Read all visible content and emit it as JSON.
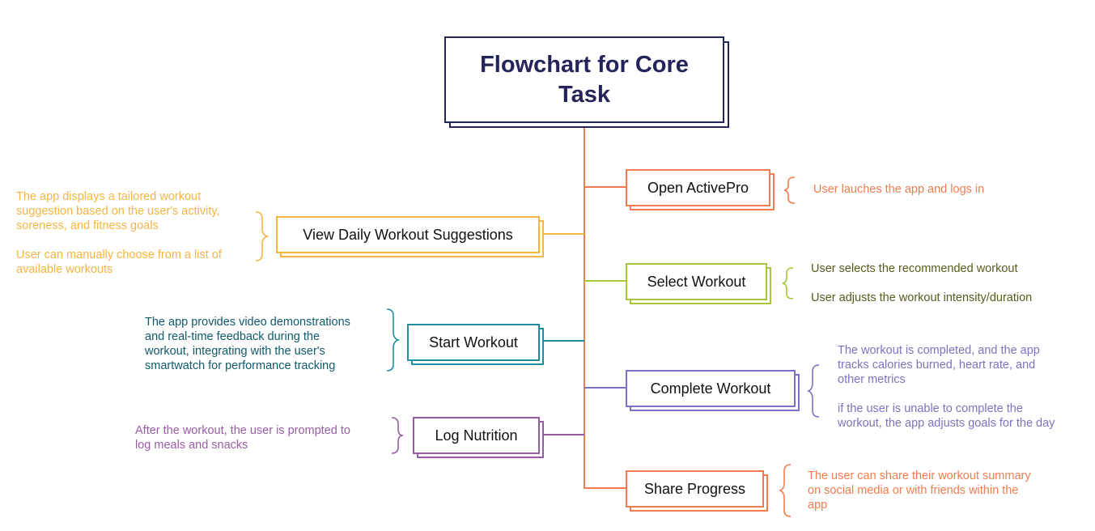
{
  "title": "Flowchart for Core Task",
  "colors": {
    "title": "#22245a",
    "trunk": "#f07c4f",
    "open": "#f07c4f",
    "view": "#f6b442",
    "select": "#a6c73a",
    "start": "#1e8fa3",
    "complete": "#7b73c2",
    "log": "#9a5ba6",
    "share": "#f07c4f"
  },
  "steps": {
    "open": "Open ActivePro",
    "view": "View Daily Workout Suggestions",
    "select": "Select Workout",
    "start": "Start Workout",
    "complete": "Complete Workout",
    "log": "Log Nutrition",
    "share": "Share Progress"
  },
  "notes": {
    "open": "User lauches the app and logs in",
    "view": "The app displays a tailored workout\nsuggestion based on the user's activity,\nsoreness, and fitness goals\n\nUser can manually choose from a list of\navailable workouts",
    "select": "User selects the recommended workout\n\nUser adjusts the workout intensity/duration",
    "start": "The app provides video demonstrations\nand real-time feedback during the\nworkout, integrating with the user's\nsmartwatch for performance tracking",
    "complete": "The workout is completed, and the app\ntracks calories burned, heart rate, and\nother metrics\n\nif the user is unable to complete the\nworkout, the app adjusts goals for the day",
    "log": "After the workout, the user is prompted to\nlog meals and snacks",
    "share": "The user can share their workout summary\non social media or with friends within the\napp"
  }
}
